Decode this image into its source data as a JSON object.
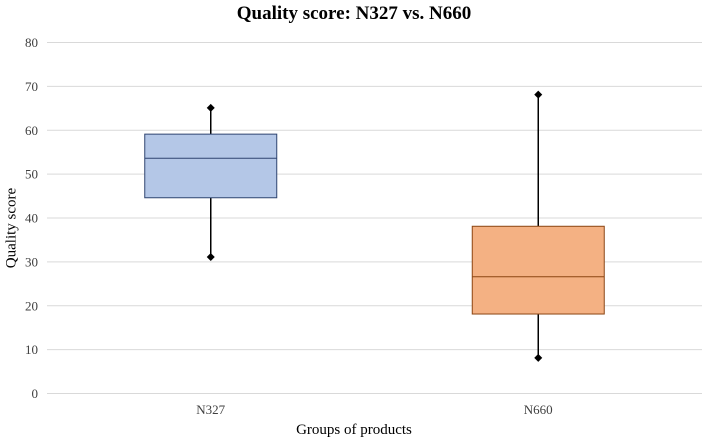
{
  "chart_data": {
    "type": "box",
    "title": "Quality score: N327 vs. N660",
    "xlabel": "Groups of products",
    "ylabel": "Quality score",
    "ylim": [
      0,
      80
    ],
    "yticks": [
      0,
      10,
      20,
      30,
      40,
      50,
      60,
      70,
      80
    ],
    "grid": true,
    "categories": [
      "N327",
      "N660"
    ],
    "boxes": [
      {
        "category": "N327",
        "min": 31,
        "q1": 44.5,
        "median": 53.5,
        "q3": 59,
        "max": 65,
        "fill": "#b4c7e7",
        "stroke": "#2f4470"
      },
      {
        "category": "N660",
        "min": 8,
        "q1": 18,
        "median": 26.5,
        "q3": 38,
        "max": 68,
        "fill": "#f4b183",
        "stroke": "#8b4513"
      }
    ]
  }
}
